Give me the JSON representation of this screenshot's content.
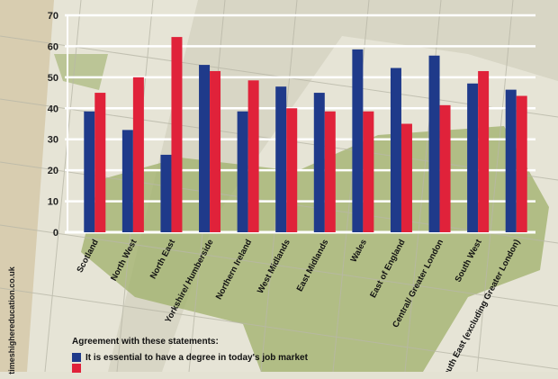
{
  "chart_data": {
    "type": "bar",
    "title": "",
    "xlabel": "",
    "ylabel": "",
    "ylim": [
      0,
      70
    ],
    "yticks": [
      0,
      10,
      20,
      30,
      40,
      50,
      60,
      70
    ],
    "grid": true,
    "categories": [
      "Scotland",
      "North West",
      "North East",
      "Yorkshire/ Humberside",
      "Northern Ireland",
      "West Midlands",
      "East Midlands",
      "Wales",
      "East of England",
      "Central/ Greater London",
      "South West",
      "South East (excluding Greater London)"
    ],
    "series": [
      {
        "name": "It is essential to have a degree in today's job market",
        "color": "#1f3a8a",
        "values": [
          39,
          33,
          25,
          54,
          39,
          47,
          45,
          59,
          53,
          57,
          48,
          46
        ]
      },
      {
        "name": "",
        "color": "#e0223a",
        "values": [
          45,
          50,
          63,
          52,
          49,
          40,
          39,
          39,
          35,
          41,
          52,
          44
        ]
      }
    ],
    "legend_title": "Agreement with these statements:",
    "legend_placement": "bottom-left"
  },
  "watermark": "timeshighereducation.co.uk"
}
